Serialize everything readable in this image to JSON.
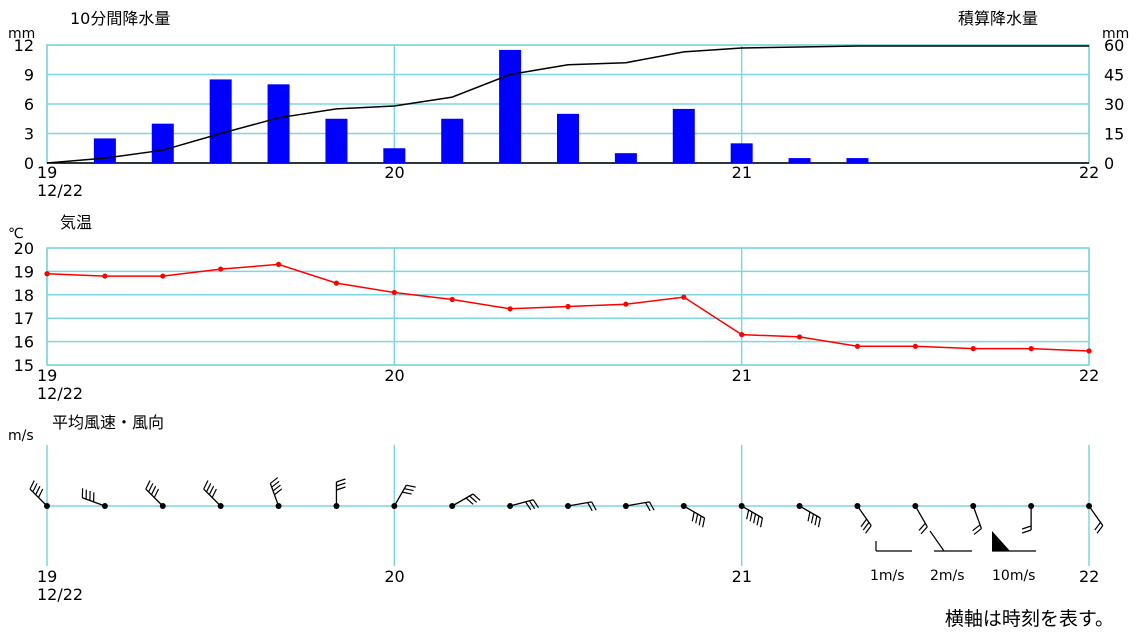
{
  "footnote": "横軸は時刻を表す。",
  "x_axis": {
    "ticks": [
      "19",
      "20",
      "21",
      "22"
    ],
    "date_label": "12/22"
  },
  "chart_data": [
    {
      "type": "bar",
      "title": "10分間降水量",
      "ylabel": "mm",
      "ylim": [
        0,
        12
      ],
      "yticks": [
        0,
        3,
        6,
        9,
        12
      ],
      "bar_color": "#0000ff",
      "x": [
        "19:10",
        "19:20",
        "19:30",
        "19:40",
        "19:50",
        "20:00",
        "20:10",
        "20:20",
        "20:30",
        "20:40",
        "20:50",
        "21:00",
        "21:10",
        "21:20"
      ],
      "values": [
        2.5,
        4.0,
        8.5,
        8.0,
        4.5,
        1.5,
        4.5,
        11.5,
        5.0,
        1.0,
        5.5,
        2.0,
        0.5,
        0.5
      ],
      "secondary": {
        "type": "line",
        "title": "積算降水量",
        "ylabel": "mm",
        "ylim": [
          0,
          60
        ],
        "yticks": [
          0,
          15,
          30,
          45,
          60
        ],
        "line_color": "#000000",
        "x": [
          "19:00",
          "19:10",
          "19:20",
          "19:30",
          "19:40",
          "19:50",
          "20:00",
          "20:10",
          "20:20",
          "20:30",
          "20:40",
          "20:50",
          "21:00",
          "21:10",
          "21:20",
          "21:30",
          "21:40",
          "21:50",
          "22:00"
        ],
        "values": [
          0,
          2.5,
          6.5,
          15,
          23,
          27.5,
          29,
          33.5,
          45,
          50,
          51,
          56.5,
          58.5,
          59,
          59.5,
          59.5,
          59.5,
          59.5,
          59.5
        ]
      }
    },
    {
      "type": "line",
      "title": "気温",
      "ylabel": "℃",
      "ylim": [
        15,
        20
      ],
      "yticks": [
        15,
        16,
        17,
        18,
        19,
        20
      ],
      "line_color": "#ff0000",
      "x": [
        "19:00",
        "19:10",
        "19:20",
        "19:30",
        "19:40",
        "19:50",
        "20:00",
        "20:10",
        "20:20",
        "20:30",
        "20:40",
        "20:50",
        "21:00",
        "21:10",
        "21:20",
        "21:30",
        "21:40",
        "21:50",
        "22:00"
      ],
      "values": [
        18.9,
        18.8,
        18.8,
        19.1,
        19.3,
        18.5,
        18.1,
        17.8,
        17.4,
        17.5,
        17.6,
        17.9,
        16.3,
        16.2,
        15.8,
        15.8,
        15.7,
        15.7,
        15.6
      ]
    },
    {
      "type": "wind_barbs",
      "title": "平均風速・風向",
      "ylabel": "m/s",
      "x": [
        "19:00",
        "19:10",
        "19:20",
        "19:30",
        "19:40",
        "19:50",
        "20:00",
        "20:10",
        "20:20",
        "20:30",
        "20:40",
        "20:50",
        "21:00",
        "21:10",
        "21:20",
        "21:30",
        "21:40",
        "21:50",
        "22:00"
      ],
      "direction_deg": [
        315,
        290,
        315,
        315,
        340,
        0,
        30,
        60,
        75,
        80,
        80,
        120,
        120,
        120,
        145,
        150,
        160,
        180,
        145
      ],
      "speed_ms": [
        4,
        4,
        4,
        4,
        4,
        3,
        3,
        3,
        3,
        2,
        2,
        4,
        5,
        4,
        3,
        2,
        2,
        2,
        2
      ],
      "legend": [
        "1m/s",
        "2m/s",
        "10m/s"
      ]
    }
  ]
}
